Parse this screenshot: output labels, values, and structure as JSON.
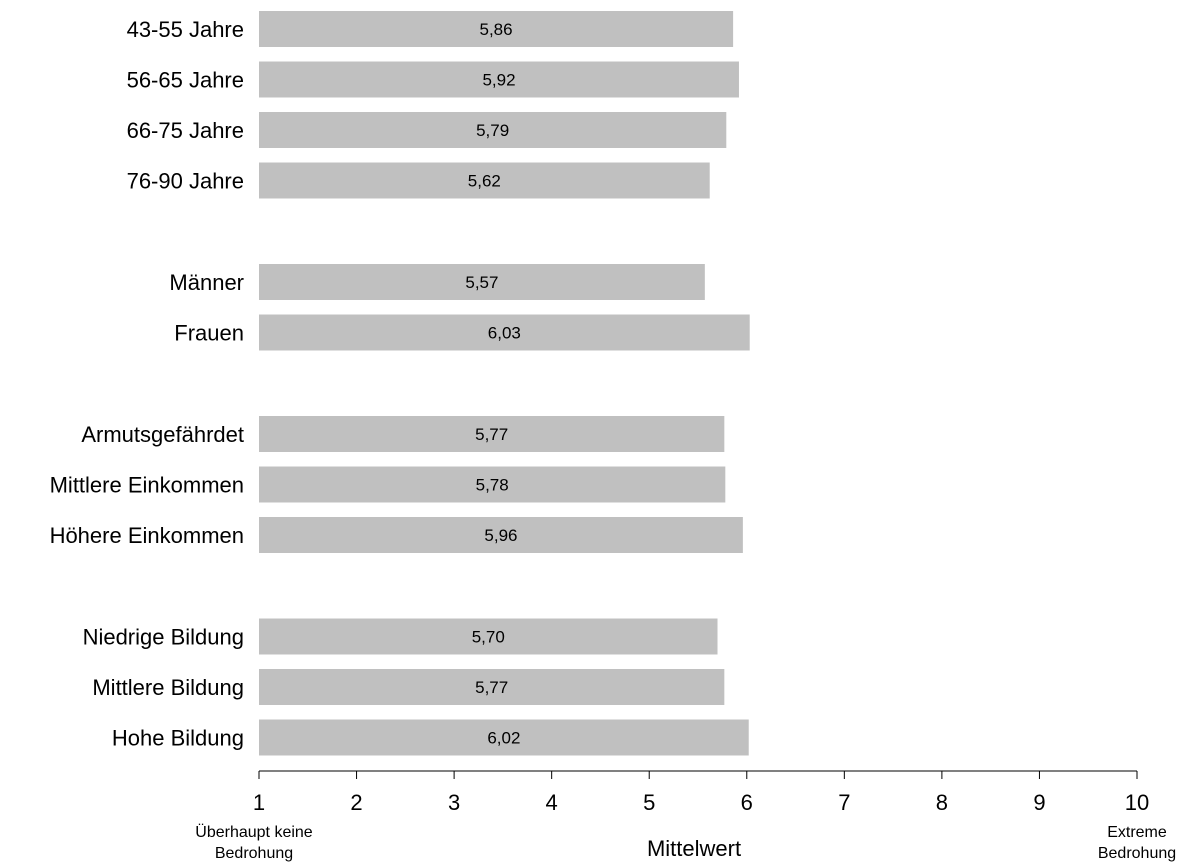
{
  "chart_data": {
    "type": "bar",
    "orientation": "horizontal",
    "groups": [
      {
        "categories": [
          "43-55 Jahre",
          "56-65 Jahre",
          "66-75 Jahre",
          "76-90 Jahre"
        ],
        "values": [
          5.86,
          5.92,
          5.79,
          5.62
        ],
        "value_labels": [
          "5,86",
          "5,92",
          "5,79",
          "5,62"
        ]
      },
      {
        "categories": [
          "Männer",
          "Frauen"
        ],
        "values": [
          5.57,
          6.03
        ],
        "value_labels": [
          "5,57",
          "6,03"
        ]
      },
      {
        "categories": [
          "Armutsgefährdet",
          "Mittlere Einkommen",
          "Höhere Einkommen"
        ],
        "values": [
          5.77,
          5.78,
          5.96
        ],
        "value_labels": [
          "5,77",
          "5,78",
          "5,96"
        ]
      },
      {
        "categories": [
          "Niedrige Bildung",
          "Mittlere Bildung",
          "Hohe Bildung"
        ],
        "values": [
          5.7,
          5.77,
          6.02
        ],
        "value_labels": [
          "5,70",
          "5,77",
          "6,02"
        ]
      }
    ],
    "xlim": [
      1,
      10
    ],
    "xticks": [
      "1",
      "2",
      "3",
      "4",
      "5",
      "6",
      "7",
      "8",
      "9",
      "10"
    ],
    "xlabel": "Mittelwert",
    "x_min_note": [
      "Überhaupt keine",
      "Bedrohung"
    ],
    "x_max_note": [
      "Extreme",
      "Bedrohung"
    ],
    "bar_color": "#c0c0c0",
    "grid": false,
    "legend": "none"
  }
}
